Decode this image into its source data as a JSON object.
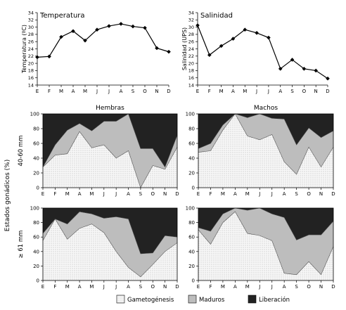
{
  "months": [
    "E",
    "F",
    "M",
    "A",
    "M",
    "J",
    "J",
    "A",
    "S",
    "O",
    "N",
    "D"
  ],
  "colors": {
    "gameto": "#f4f4f4",
    "maduros": "#bdbdbd",
    "liberacion": "#222222",
    "line": "#000000"
  },
  "chart_data": [
    {
      "type": "line",
      "title": "Temperatura",
      "ylabel": "Temperatura (ºC)",
      "ylim": [
        14,
        34
      ],
      "yticks": [
        14,
        16,
        18,
        20,
        22,
        24,
        26,
        28,
        30,
        32,
        34
      ],
      "values": [
        21.7,
        21.9,
        27.3,
        28.9,
        26.3,
        29.3,
        30.3,
        30.9,
        30.2,
        29.8,
        24.2,
        23.2
      ]
    },
    {
      "type": "line",
      "title": "Salinidad",
      "ylabel": "Salinidad (UPS)",
      "ylim": [
        14,
        34
      ],
      "yticks": [
        14,
        16,
        18,
        20,
        22,
        24,
        26,
        28,
        30,
        32,
        34
      ],
      "values": [
        30.5,
        22.3,
        24.8,
        26.8,
        29.3,
        28.4,
        27.1,
        18.5,
        21.0,
        18.5,
        18.0,
        15.8
      ]
    },
    {
      "type": "area",
      "title": "Hembras",
      "row_label": "40-60 mm",
      "ylim": [
        0,
        100
      ],
      "yticks": [
        0,
        20,
        40,
        60,
        80,
        100
      ],
      "series": [
        {
          "name": "Gametogénesis",
          "values": [
            28,
            44,
            46,
            76,
            54,
            58,
            40,
            50,
            0,
            30,
            25,
            55
          ]
        },
        {
          "name": "Maduros",
          "values": [
            0,
            14,
            32,
            11,
            23,
            32,
            50,
            50,
            53,
            23,
            3,
            16
          ]
        },
        {
          "name": "Liberación",
          "values": [
            72,
            42,
            22,
            13,
            23,
            10,
            10,
            0,
            47,
            47,
            72,
            29
          ]
        }
      ]
    },
    {
      "type": "area",
      "title": "Machos",
      "row_label": "",
      "ylim": [
        0,
        100
      ],
      "yticks": [
        0,
        20,
        40,
        60,
        80,
        100
      ],
      "series": [
        {
          "name": "Gametogénesis",
          "values": [
            48,
            50,
            78,
            100,
            70,
            65,
            72,
            35,
            18,
            55,
            28,
            55
          ]
        },
        {
          "name": "Maduros",
          "values": [
            5,
            10,
            7,
            0,
            25,
            35,
            22,
            58,
            40,
            26,
            40,
            22
          ]
        },
        {
          "name": "Liberación",
          "values": [
            47,
            40,
            15,
            0,
            5,
            0,
            6,
            7,
            42,
            19,
            32,
            23
          ]
        }
      ]
    },
    {
      "type": "area",
      "title": "",
      "row_label": "≥ 61 mm",
      "ylim": [
        0,
        100
      ],
      "yticks": [
        0,
        20,
        40,
        60,
        80,
        100
      ],
      "series": [
        {
          "name": "Gametogénesis",
          "values": [
            55,
            85,
            57,
            72,
            78,
            66,
            40,
            18,
            5,
            22,
            40,
            52
          ]
        },
        {
          "name": "Maduros",
          "values": [
            10,
            0,
            21,
            23,
            14,
            20,
            48,
            67,
            32,
            16,
            22,
            8
          ]
        },
        {
          "name": "Liberación",
          "values": [
            35,
            15,
            22,
            5,
            8,
            14,
            12,
            15,
            63,
            62,
            38,
            40
          ]
        }
      ]
    },
    {
      "type": "area",
      "title": "",
      "row_label": "",
      "ylim": [
        0,
        100
      ],
      "yticks": [
        0,
        20,
        40,
        60,
        80,
        100
      ],
      "series": [
        {
          "name": "Gametogénesis",
          "values": [
            70,
            50,
            80,
            95,
            65,
            62,
            55,
            10,
            8,
            26,
            8,
            47
          ]
        },
        {
          "name": "Maduros",
          "values": [
            3,
            18,
            12,
            5,
            32,
            38,
            37,
            77,
            48,
            37,
            55,
            35
          ]
        },
        {
          "name": "Liberación",
          "values": [
            27,
            32,
            8,
            0,
            3,
            0,
            8,
            13,
            44,
            37,
            37,
            18
          ]
        }
      ]
    }
  ],
  "shared": {
    "ylabel": "Estados gonádicos (%)"
  },
  "legend": [
    {
      "key": "gameto",
      "label": "Gametogénesis"
    },
    {
      "key": "maduros",
      "label": "Maduros"
    },
    {
      "key": "liberacion",
      "label": "Liberación"
    }
  ]
}
